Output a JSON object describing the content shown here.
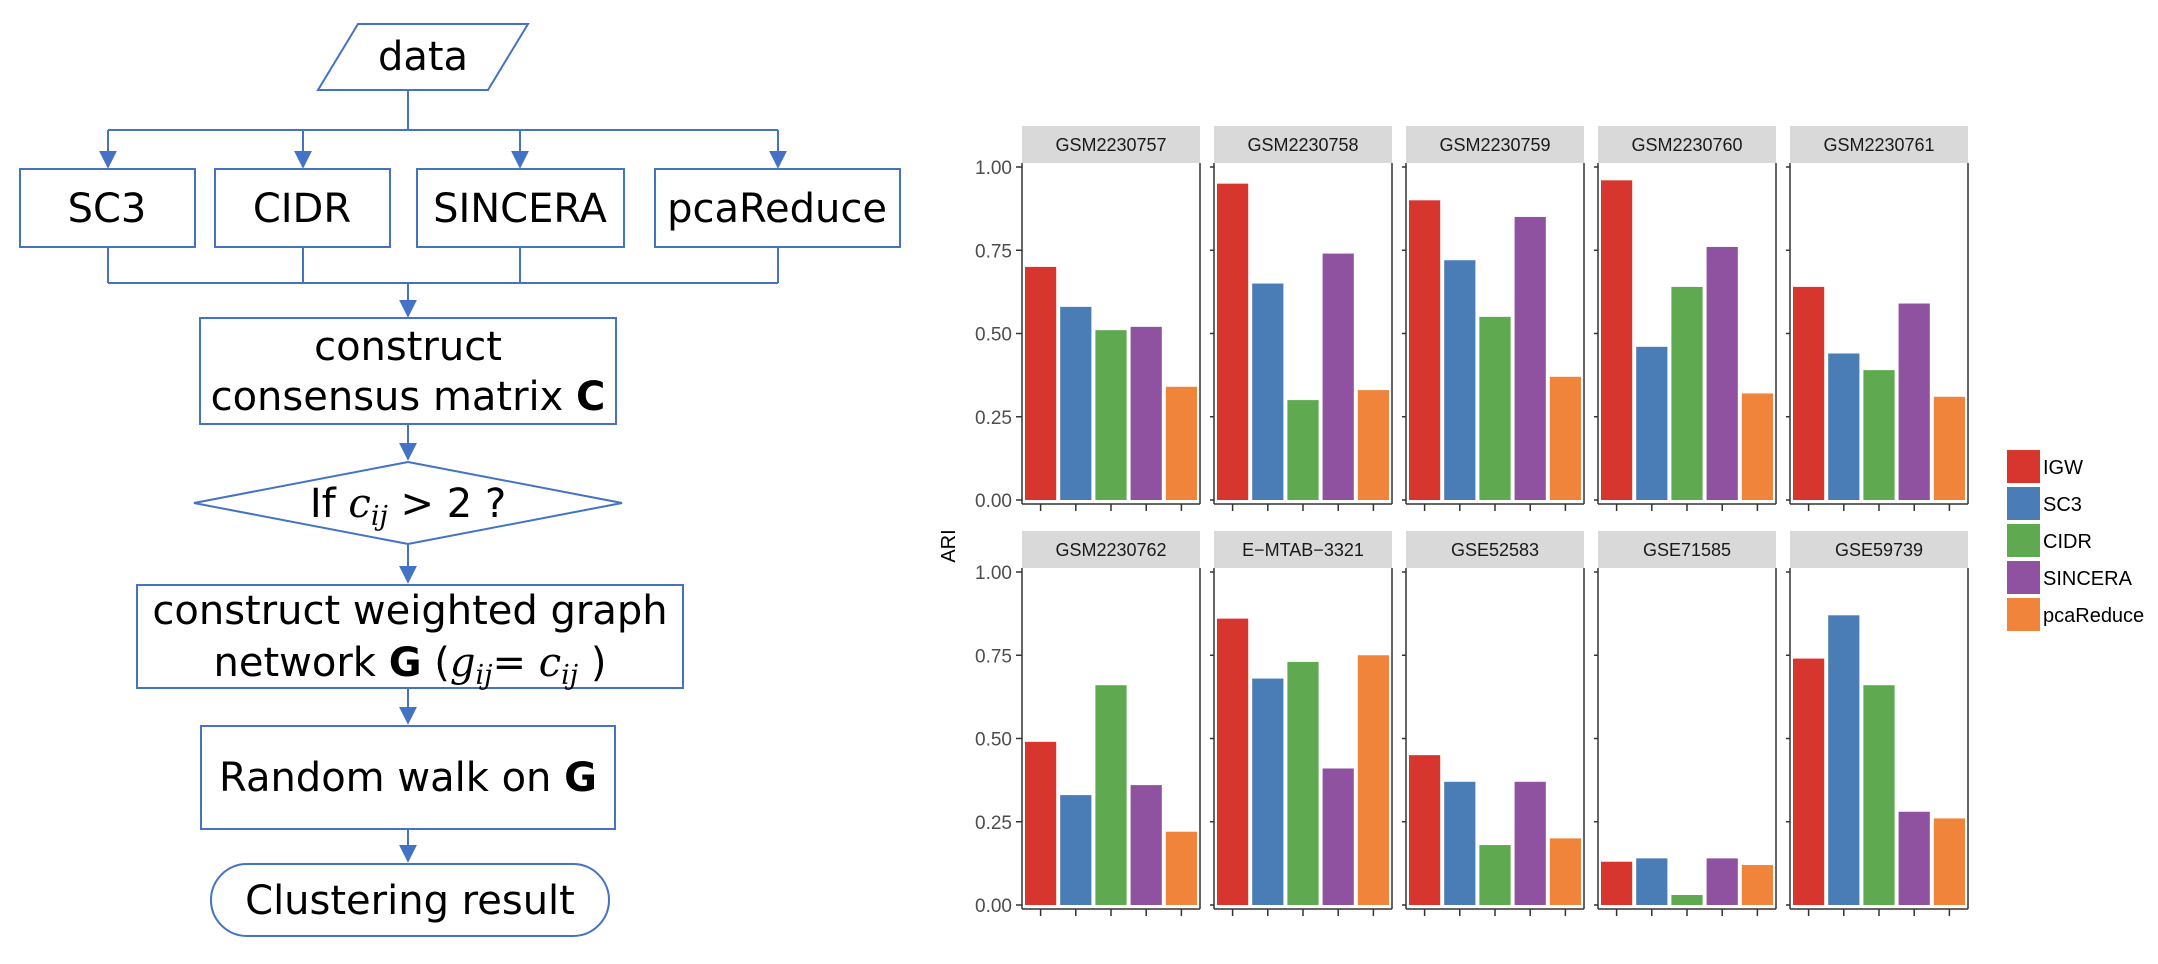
{
  "flowchart": {
    "data_label": "data",
    "methods": [
      "SC3",
      "CIDR",
      "SINCERA",
      "pcaReduce"
    ],
    "consensus_line1": "construct",
    "consensus_line2_pre": "consensus  matrix ",
    "consensus_line2_bold": "C",
    "decision_pre": "If ",
    "decision_var": "c",
    "decision_sub": "ij",
    "decision_post": " > 2 ?",
    "graph_line1": "construct weighted graph",
    "graph_line2_pre": "network ",
    "graph_line2_bold": "G",
    "graph_open": " (",
    "graph_g_var": "g",
    "graph_g_sub": "ij",
    "graph_eq": "= ",
    "graph_c_var": "c",
    "graph_c_sub": "ij",
    "graph_close": " )",
    "walk_pre": "Random walk on ",
    "walk_bold": "G",
    "result_label": "Clustering result",
    "accent_color": "#4472c4"
  },
  "chart_data": {
    "type": "bar",
    "ylabel": "ARI",
    "ylim": [
      0,
      1.0
    ],
    "yticks": [
      "0.00",
      "0.25",
      "0.50",
      "0.75",
      "1.00"
    ],
    "yticks_values": [
      0,
      0.25,
      0.5,
      0.75,
      1.0
    ],
    "grid": false,
    "legend_position": "right",
    "series_names": [
      "IGW",
      "SC3",
      "CIDR",
      "SINCERA",
      "pcaReduce"
    ],
    "colors": [
      "#d7362e",
      "#4a7db5",
      "#5faa50",
      "#8e52a0",
      "#f0843a"
    ],
    "panels": [
      {
        "name": "GSM2230757",
        "values": [
          0.7,
          0.58,
          0.51,
          0.52,
          0.34
        ]
      },
      {
        "name": "GSM2230758",
        "values": [
          0.95,
          0.65,
          0.3,
          0.74,
          0.33
        ]
      },
      {
        "name": "GSM2230759",
        "values": [
          0.9,
          0.72,
          0.55,
          0.85,
          0.37
        ]
      },
      {
        "name": "GSM2230760",
        "values": [
          0.96,
          0.46,
          0.64,
          0.76,
          0.32
        ]
      },
      {
        "name": "GSM2230761",
        "values": [
          0.64,
          0.44,
          0.39,
          0.59,
          0.31
        ]
      },
      {
        "name": "GSM2230762",
        "values": [
          0.49,
          0.33,
          0.66,
          0.36,
          0.22
        ]
      },
      {
        "name": "E−MTAB−3321",
        "values": [
          0.86,
          0.68,
          0.73,
          0.41,
          0.75
        ]
      },
      {
        "name": "GSE52583",
        "values": [
          0.45,
          0.37,
          0.18,
          0.37,
          0.2
        ]
      },
      {
        "name": "GSE71585",
        "values": [
          0.13,
          0.14,
          0.03,
          0.14,
          0.12
        ]
      },
      {
        "name": "GSE59739",
        "values": [
          0.74,
          0.87,
          0.66,
          0.28,
          0.26
        ]
      }
    ]
  }
}
